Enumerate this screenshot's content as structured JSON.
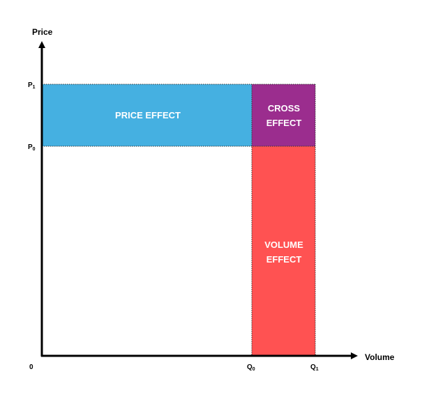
{
  "axes": {
    "y_title": "Price",
    "x_title": "Volume",
    "origin": "0",
    "p1": {
      "base": "P",
      "sub": "1"
    },
    "p0": {
      "base": "P",
      "sub": "0"
    },
    "q0": {
      "base": "Q",
      "sub": "0"
    },
    "q1": {
      "base": "Q",
      "sub": "1"
    }
  },
  "regions": {
    "price_effect": {
      "label": "PRICE EFFECT",
      "color": "#45b0e1"
    },
    "cross_effect": {
      "line1": "CROSS",
      "line2": "EFFECT",
      "color": "#9b2d8e"
    },
    "volume_effect": {
      "line1": "VOLUME",
      "line2": "EFFECT",
      "color": "#ff5252"
    }
  }
}
